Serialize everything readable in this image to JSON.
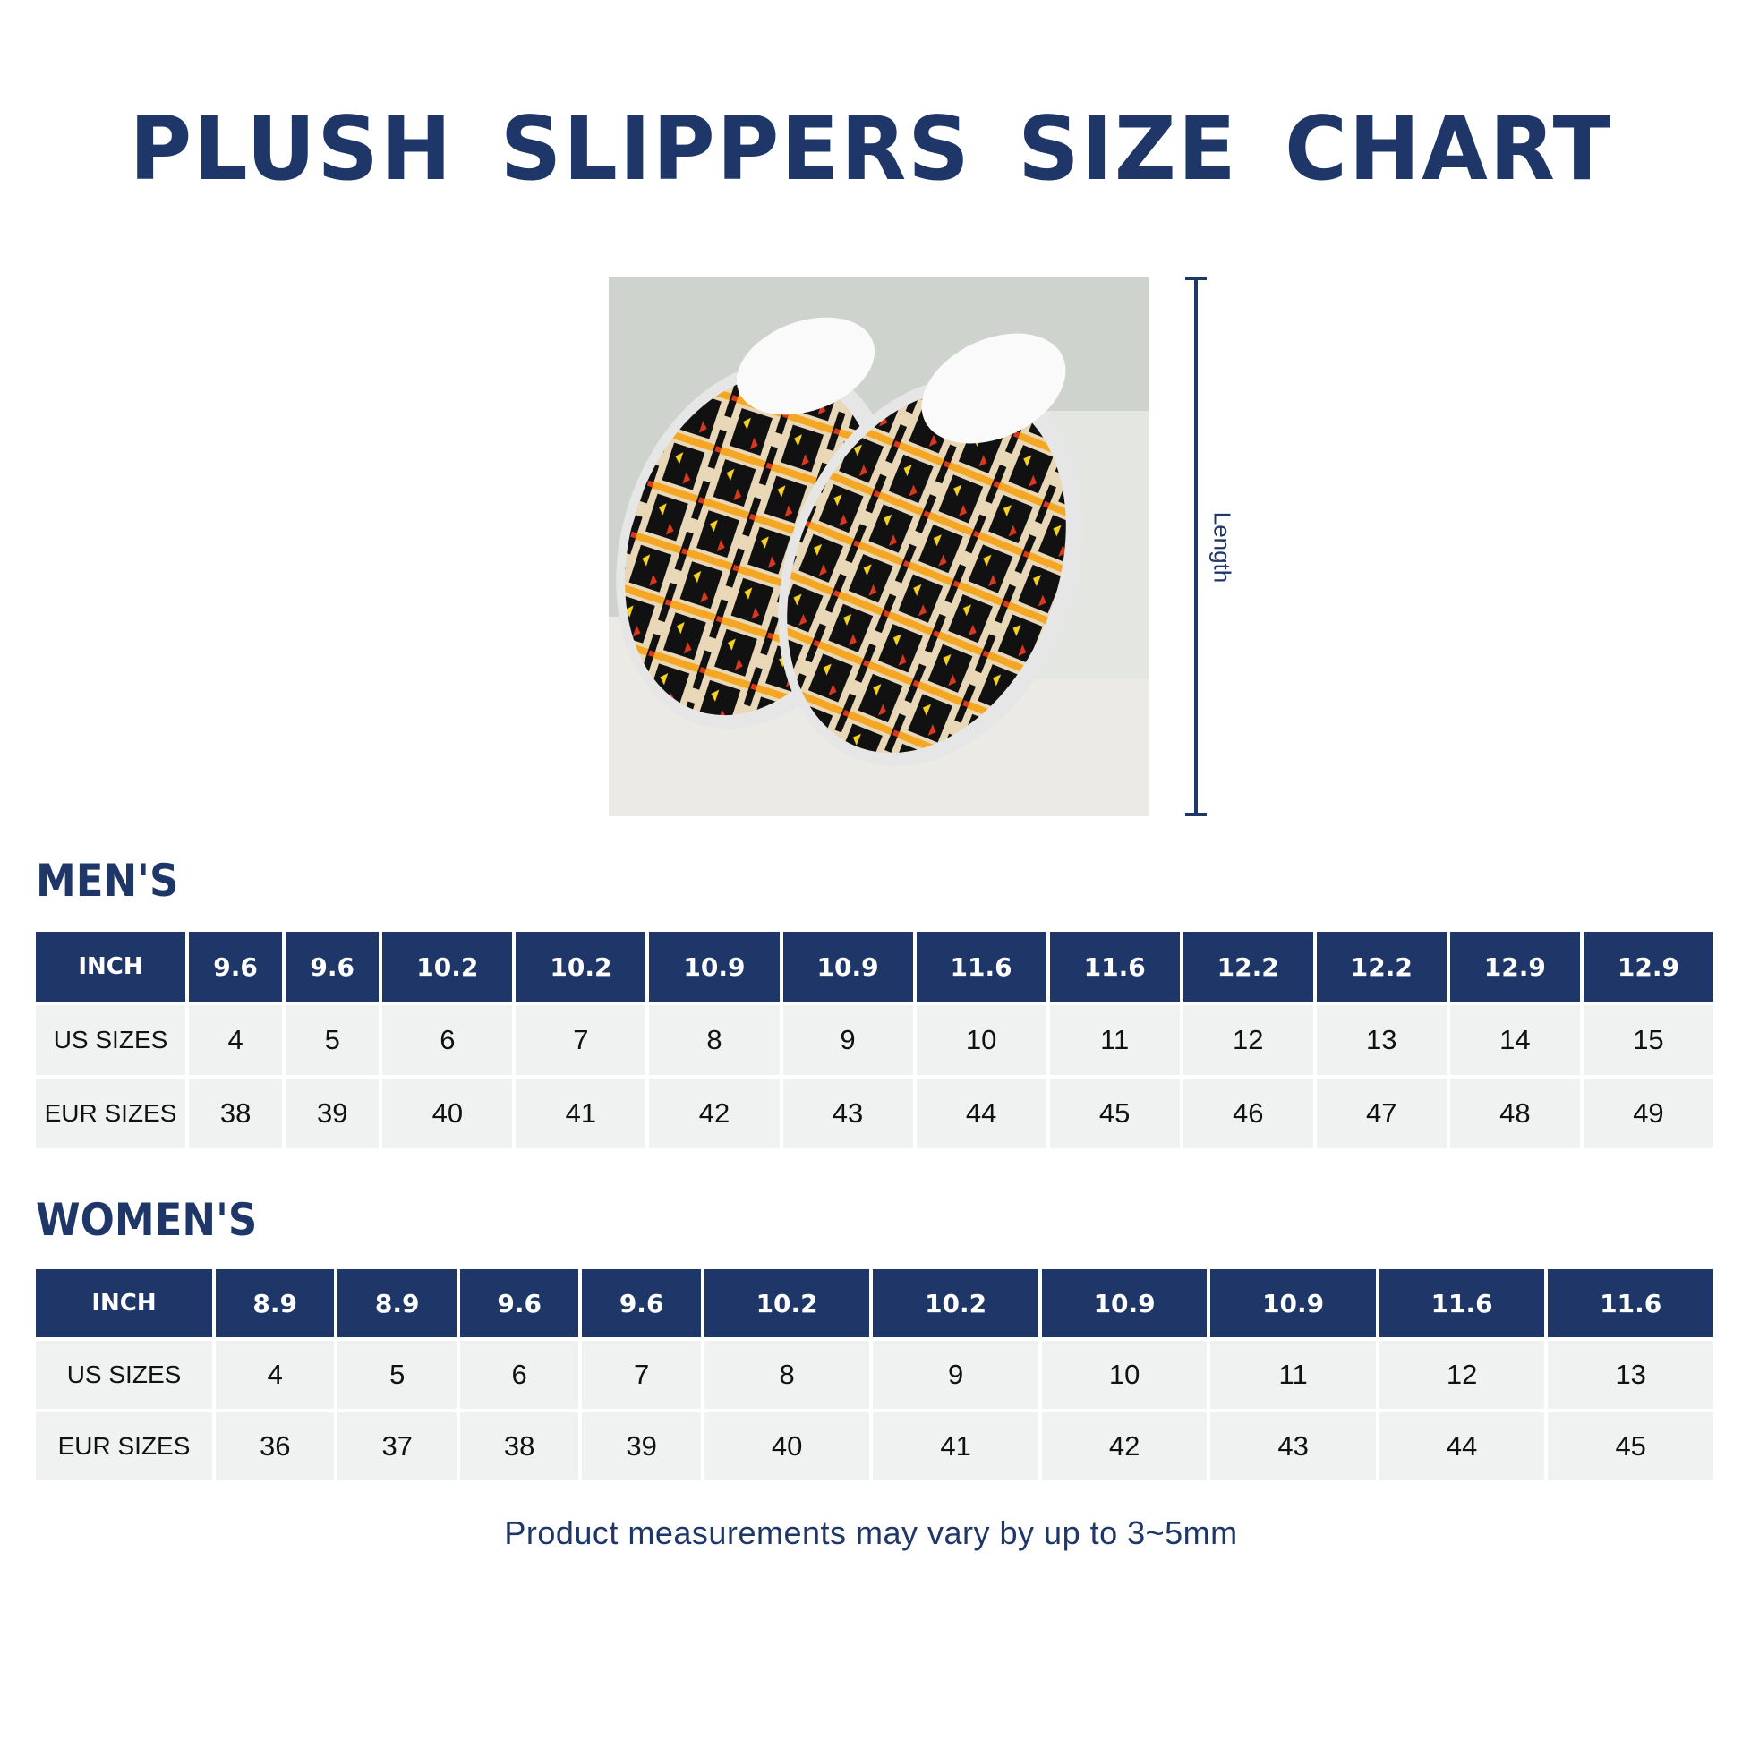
{
  "title": "PLUSH SLIPPERS SIZE CHART",
  "length_label": "Length",
  "mens": {
    "heading": "MEN'S",
    "row_labels": [
      "INCH",
      "US SIZES",
      "EUR SIZES"
    ],
    "inch": [
      "9.6",
      "9.6",
      "10.2",
      "10.2",
      "10.9",
      "10.9",
      "11.6",
      "11.6",
      "12.2",
      "12.2",
      "12.9",
      "12.9"
    ],
    "us": [
      "4",
      "5",
      "6",
      "7",
      "8",
      "9",
      "10",
      "11",
      "12",
      "13",
      "14",
      "15"
    ],
    "eur": [
      "38",
      "39",
      "40",
      "41",
      "42",
      "43",
      "44",
      "45",
      "46",
      "47",
      "48",
      "49"
    ]
  },
  "womens": {
    "heading": "WOMEN'S",
    "row_labels": [
      "INCH",
      "US SIZES",
      "EUR SIZES"
    ],
    "inch": [
      "8.9",
      "8.9",
      "9.6",
      "9.6",
      "10.2",
      "10.2",
      "10.9",
      "10.9",
      "11.6",
      "11.6"
    ],
    "us": [
      "4",
      "5",
      "6",
      "7",
      "8",
      "9",
      "10",
      "11",
      "12",
      "13"
    ],
    "eur": [
      "36",
      "37",
      "38",
      "39",
      "40",
      "41",
      "42",
      "43",
      "44",
      "45"
    ]
  },
  "note": "Product measurements may vary by up to 3~5mm",
  "colors": {
    "brand": "#1f3768",
    "cell": "#f0f1f1"
  }
}
